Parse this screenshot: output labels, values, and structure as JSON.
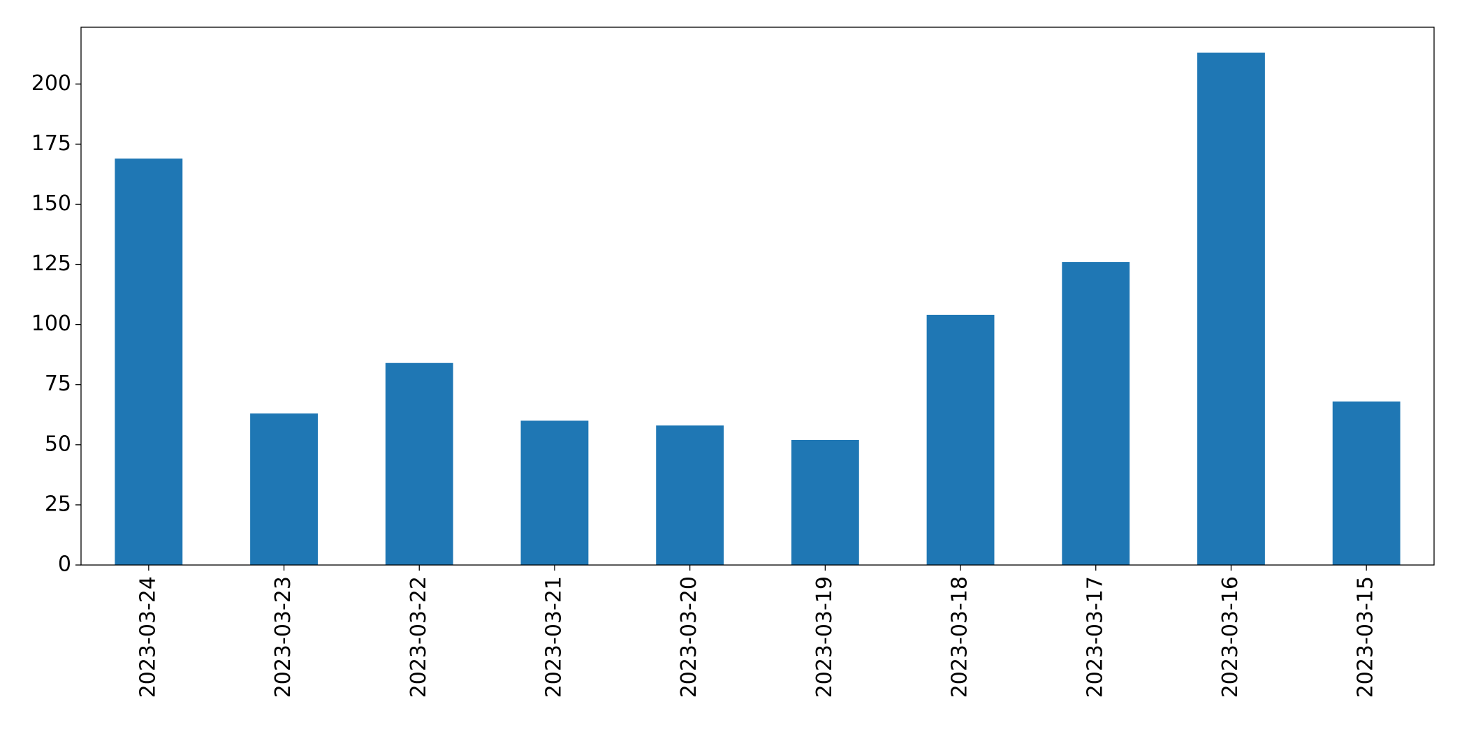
{
  "chart_data": {
    "type": "bar",
    "categories": [
      "2023-03-24",
      "2023-03-23",
      "2023-03-22",
      "2023-03-21",
      "2023-03-20",
      "2023-03-19",
      "2023-03-18",
      "2023-03-17",
      "2023-03-16",
      "2023-03-15"
    ],
    "values": [
      169,
      63,
      84,
      60,
      58,
      52,
      104,
      126,
      213,
      68
    ],
    "color": "#1f77b4",
    "ylim": [
      0,
      223.6
    ],
    "yticks": [
      0,
      25,
      50,
      75,
      100,
      125,
      150,
      175,
      200
    ],
    "grid": false
  }
}
